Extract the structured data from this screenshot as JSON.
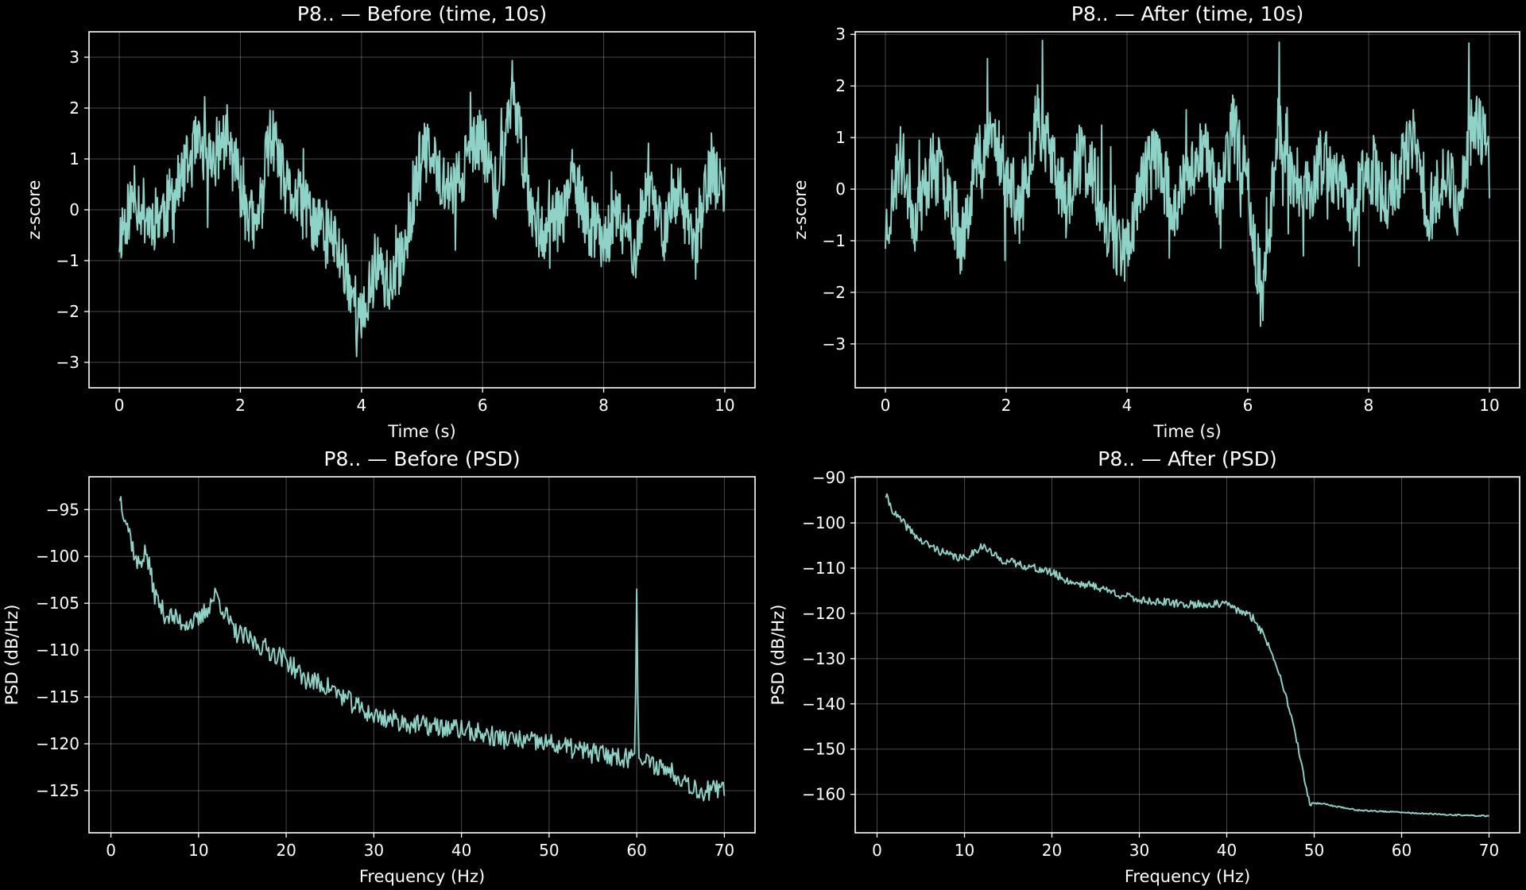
{
  "colors": {
    "background": "#000000",
    "trace": "#8dd3c7",
    "axes": "#ffffff"
  },
  "chart_data": [
    {
      "id": "before-time",
      "type": "line",
      "title": "P8.. — Before (time, 10s)",
      "xlabel": "Time (s)",
      "ylabel": "z-score",
      "xlim": [
        -0.5,
        10.5
      ],
      "ylim": [
        -3.5,
        3.5
      ],
      "xticks": [
        0,
        2,
        4,
        6,
        8,
        10
      ],
      "xtick_labels": [
        "0",
        "2",
        "4",
        "6",
        "8",
        "10"
      ],
      "yticks": [
        -3,
        -2,
        -1,
        0,
        1,
        2,
        3
      ],
      "ytick_labels": [
        "−3",
        "−2",
        "−1",
        "0",
        "1",
        "2",
        "3"
      ],
      "grid": true,
      "series": [
        {
          "x": [
            0,
            0.25,
            0.5,
            0.75,
            1.0,
            1.25,
            1.5,
            1.75,
            2.0,
            2.25,
            2.5,
            2.75,
            3.0,
            3.25,
            3.5,
            3.75,
            4.0,
            4.25,
            4.5,
            4.75,
            5.0,
            5.25,
            5.5,
            5.75,
            6.0,
            6.25,
            6.5,
            6.75,
            7.0,
            7.25,
            7.5,
            7.75,
            8.0,
            8.25,
            8.5,
            8.75,
            9.0,
            9.25,
            9.5,
            9.75,
            10.0
          ],
          "y": [
            -0.5,
            0.3,
            -0.2,
            0.0,
            0.5,
            1.2,
            1.0,
            1.4,
            0.6,
            -0.5,
            1.5,
            0.4,
            0.1,
            -0.3,
            -0.5,
            -1.2,
            -2.3,
            -1.0,
            -1.6,
            -0.5,
            1.2,
            0.8,
            0.3,
            1.0,
            1.4,
            0.2,
            2.5,
            0.3,
            -0.4,
            -0.2,
            0.6,
            -0.3,
            -0.5,
            -0.2,
            -0.7,
            0.5,
            -0.4,
            0.3,
            -0.9,
            0.8,
            0.3
          ]
        }
      ]
    },
    {
      "id": "after-time",
      "type": "line",
      "title": "P8.. — After (time, 10s)",
      "xlabel": "Time (s)",
      "ylabel": "z-score",
      "xlim": [
        -0.5,
        10.5
      ],
      "ylim": [
        -3.85,
        3.05
      ],
      "xticks": [
        0,
        2,
        4,
        6,
        8,
        10
      ],
      "xtick_labels": [
        "0",
        "2",
        "4",
        "6",
        "8",
        "10"
      ],
      "yticks": [
        -3,
        -2,
        -1,
        0,
        1,
        2,
        3
      ],
      "ytick_labels": [
        "−3",
        "−2",
        "−1",
        "0",
        "1",
        "2",
        "3"
      ],
      "grid": true,
      "series": [
        {
          "x": [
            0,
            0.25,
            0.5,
            0.75,
            1.0,
            1.25,
            1.5,
            1.75,
            2.0,
            2.25,
            2.5,
            2.75,
            3.0,
            3.25,
            3.5,
            3.75,
            4.0,
            4.25,
            4.5,
            4.75,
            5.0,
            5.25,
            5.5,
            5.75,
            6.0,
            6.25,
            6.5,
            6.75,
            7.0,
            7.25,
            7.5,
            7.75,
            8.0,
            8.25,
            8.5,
            8.75,
            9.0,
            9.25,
            9.5,
            9.75,
            10.0
          ],
          "y": [
            -0.8,
            0.6,
            -0.6,
            0.4,
            0.3,
            -1.0,
            0.5,
            1.2,
            0.3,
            -0.5,
            1.5,
            0.6,
            -0.3,
            0.7,
            0.0,
            -0.9,
            -1.2,
            0.2,
            0.7,
            -0.4,
            0.2,
            0.9,
            -0.2,
            1.2,
            0.1,
            -2.3,
            1.4,
            0.2,
            -0.1,
            0.6,
            0.1,
            -0.4,
            0.6,
            -0.2,
            0.3,
            0.9,
            -0.5,
            0.4,
            -0.3,
            1.5,
            0.5
          ]
        }
      ]
    },
    {
      "id": "before-psd",
      "type": "line",
      "title": "P8.. — Before (PSD)",
      "xlabel": "Frequency (Hz)",
      "ylabel": "PSD (dB/Hz)",
      "xlim": [
        -2.5,
        73.5
      ],
      "ylim": [
        -129.5,
        -91.5
      ],
      "xticks": [
        0,
        10,
        20,
        30,
        40,
        50,
        60,
        70
      ],
      "xtick_labels": [
        "0",
        "10",
        "20",
        "30",
        "40",
        "50",
        "60",
        "70"
      ],
      "yticks": [
        -125,
        -120,
        -115,
        -110,
        -105,
        -100,
        -95
      ],
      "ytick_labels": [
        "−125",
        "−120",
        "−115",
        "−110",
        "−105",
        "−100",
        "−95"
      ],
      "grid": true,
      "series": [
        {
          "x": [
            1,
            2,
            3,
            4,
            5,
            6,
            8,
            10,
            12,
            14,
            16,
            18,
            20,
            22,
            25,
            28,
            30,
            35,
            40,
            45,
            50,
            55,
            59,
            59.8,
            60,
            60.2,
            61,
            63,
            65,
            67,
            70
          ],
          "y": [
            -93.5,
            -97,
            -101,
            -99.5,
            -104,
            -106,
            -107,
            -107,
            -104,
            -108,
            -109,
            -110,
            -111,
            -113,
            -114,
            -116,
            -117,
            -118,
            -118.5,
            -119.5,
            -120,
            -121,
            -121.5,
            -121,
            -103.5,
            -121.5,
            -122,
            -122.5,
            -123.5,
            -125,
            -125
          ]
        }
      ]
    },
    {
      "id": "after-psd",
      "type": "line",
      "title": "P8.. — After (PSD)",
      "xlabel": "Frequency (Hz)",
      "ylabel": "PSD (dB/Hz)",
      "xlim": [
        -2.5,
        73.5
      ],
      "ylim": [
        -168.5,
        -89.8
      ],
      "xticks": [
        0,
        10,
        20,
        30,
        40,
        50,
        60,
        70
      ],
      "xtick_labels": [
        "0",
        "10",
        "20",
        "30",
        "40",
        "50",
        "60",
        "70"
      ],
      "yticks": [
        -160,
        -150,
        -140,
        -130,
        -120,
        -110,
        -100,
        -90
      ],
      "ytick_labels": [
        "−160",
        "−150",
        "−140",
        "−130",
        "−120",
        "−110",
        "−100",
        "−90"
      ],
      "grid": true,
      "series": [
        {
          "x": [
            1,
            2,
            3,
            4,
            5,
            6,
            8,
            10,
            12,
            14,
            16,
            18,
            20,
            22,
            25,
            28,
            30,
            35,
            38,
            40,
            42,
            43,
            44,
            45,
            46,
            47,
            48,
            49,
            49.5,
            50,
            51,
            52,
            55,
            60,
            65,
            70
          ],
          "y": [
            -94,
            -98,
            -100,
            -102,
            -104,
            -105,
            -107,
            -108,
            -105,
            -108,
            -109,
            -110,
            -111,
            -113,
            -114,
            -116,
            -117,
            -118,
            -118,
            -118,
            -120,
            -121,
            -124,
            -128,
            -133,
            -140,
            -148,
            -158,
            -162,
            -162,
            -162,
            -162.5,
            -163.5,
            -164,
            -164.5,
            -164.8
          ]
        }
      ]
    }
  ]
}
